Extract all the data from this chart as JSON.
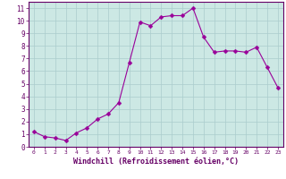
{
  "hours": [
    0,
    1,
    2,
    3,
    4,
    5,
    6,
    7,
    8,
    9,
    10,
    11,
    12,
    13,
    14,
    15,
    16,
    17,
    18,
    19,
    20,
    21,
    22,
    23
  ],
  "values": [
    1.2,
    0.8,
    0.7,
    0.5,
    1.1,
    1.5,
    2.2,
    2.6,
    3.5,
    6.7,
    9.9,
    9.6,
    10.3,
    10.4,
    10.4,
    11.0,
    8.7,
    7.5,
    7.6,
    7.6,
    7.5,
    7.9,
    6.3,
    4.7
  ],
  "line_color": "#990099",
  "marker": "D",
  "marker_size": 2.5,
  "bg_color": "#cce8e4",
  "grid_color": "#aacccc",
  "fig_bg_color": "#ffffff",
  "xlabel": "Windchill (Refroidissement éolien,°C)",
  "xlim": [
    -0.5,
    23.5
  ],
  "ylim": [
    0,
    11.5
  ],
  "yticks": [
    0,
    1,
    2,
    3,
    4,
    5,
    6,
    7,
    8,
    9,
    10,
    11
  ],
  "xticks": [
    0,
    1,
    2,
    3,
    4,
    5,
    6,
    7,
    8,
    9,
    10,
    11,
    12,
    13,
    14,
    15,
    16,
    17,
    18,
    19,
    20,
    21,
    22,
    23
  ],
  "spine_color": "#660066",
  "tick_color": "#660066",
  "xlabel_color": "#660066"
}
